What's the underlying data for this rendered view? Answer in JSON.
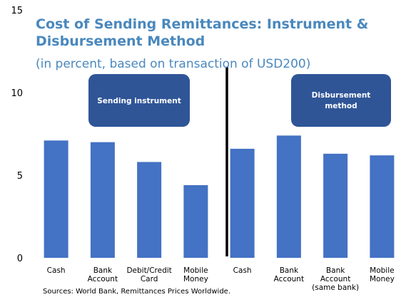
{
  "chart_data": {
    "type": "bar",
    "title": "Cost of Sending Remittances: Instrument &\nDisbursement Method",
    "subtitle": "(in percent, based on transaction of USD200)",
    "categories": [
      "Cash",
      "Bank\nAccount",
      "Debit/Credit\nCard",
      "Mobile\nMoney",
      "Cash",
      "Bank\nAccount",
      "Bank\nAccount\n(same bank)",
      "Mobile\nMoney"
    ],
    "values": [
      7.1,
      7.0,
      5.8,
      4.4,
      6.6,
      7.4,
      6.3,
      6.2
    ],
    "color": "#4472c4",
    "ylim": [
      0,
      15
    ],
    "yticks": [
      0,
      5,
      10,
      15
    ],
    "grid": false,
    "annotations": [
      "Sending instrument",
      "Disbursement\nmethod"
    ],
    "source": "Sources: World Bank, Remittances Prices Worldwide."
  }
}
